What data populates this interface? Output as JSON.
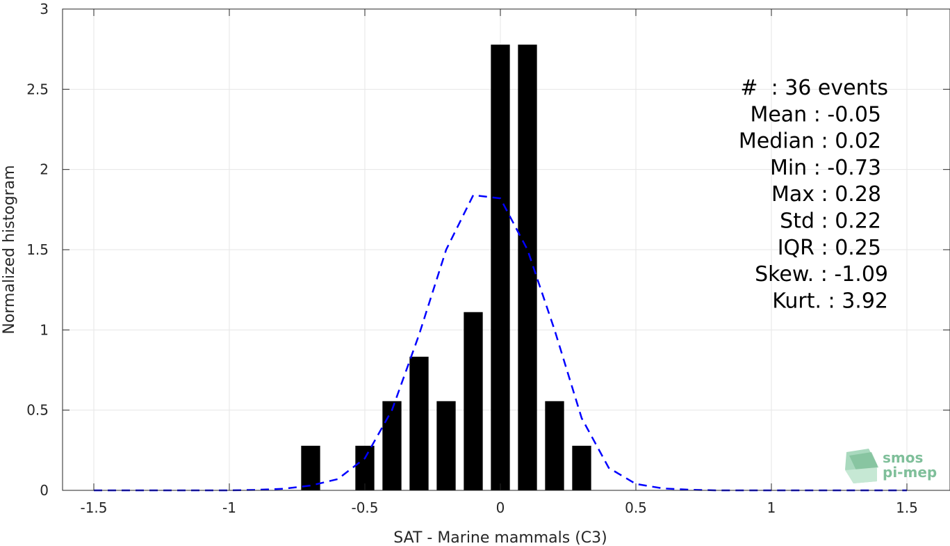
{
  "chart_data": {
    "type": "bar",
    "xlabel": "SAT - Marine mammals (C3)",
    "ylabel": "Normalized histogram",
    "xlim": [
      -1.5,
      1.5
    ],
    "ylim": [
      0,
      3
    ],
    "x_ticks": [
      -1.5,
      -1,
      -0.5,
      0,
      0.5,
      1,
      1.5
    ],
    "x_tick_labels": [
      "-1.5",
      "-1",
      "-0.5",
      "0",
      "0.5",
      "1",
      "1.5"
    ],
    "y_ticks": [
      0,
      0.5,
      1,
      1.5,
      2,
      2.5,
      3
    ],
    "y_tick_labels": [
      "0",
      "0.5",
      "1",
      "1.5",
      "2",
      "2.5",
      "3"
    ],
    "grid": true,
    "bar_color": "#000000",
    "bars": [
      {
        "x": -0.7,
        "value": 0.278
      },
      {
        "x": -0.5,
        "value": 0.278
      },
      {
        "x": -0.4,
        "value": 0.556
      },
      {
        "x": -0.3,
        "value": 0.833
      },
      {
        "x": -0.2,
        "value": 0.556
      },
      {
        "x": -0.1,
        "value": 1.111
      },
      {
        "x": 0.0,
        "value": 2.778
      },
      {
        "x": 0.1,
        "value": 2.778
      },
      {
        "x": 0.2,
        "value": 0.556
      },
      {
        "x": 0.3,
        "value": 0.278
      }
    ],
    "fit_curve": {
      "color": "#0000ff",
      "style": "dashed",
      "points": [
        [
          -1.5,
          0.0
        ],
        [
          -1.4,
          0.0
        ],
        [
          -1.3,
          0.0
        ],
        [
          -1.2,
          0.0
        ],
        [
          -1.1,
          0.0
        ],
        [
          -1.0,
          0.0
        ],
        [
          -0.9,
          0.003
        ],
        [
          -0.8,
          0.01
        ],
        [
          -0.7,
          0.03
        ],
        [
          -0.6,
          0.07
        ],
        [
          -0.5,
          0.2
        ],
        [
          -0.4,
          0.5
        ],
        [
          -0.3,
          0.97
        ],
        [
          -0.2,
          1.5
        ],
        [
          -0.1,
          1.84
        ],
        [
          0.0,
          1.82
        ],
        [
          0.1,
          1.5
        ],
        [
          0.2,
          1.0
        ],
        [
          0.3,
          0.45
        ],
        [
          0.4,
          0.14
        ],
        [
          0.5,
          0.04
        ],
        [
          0.6,
          0.012
        ],
        [
          0.7,
          0.004
        ],
        [
          0.8,
          0.0
        ],
        [
          0.9,
          0.0
        ],
        [
          1.0,
          0.0
        ],
        [
          1.1,
          0.0
        ],
        [
          1.2,
          0.0
        ],
        [
          1.3,
          0.0
        ],
        [
          1.4,
          0.0
        ],
        [
          1.5,
          0.0
        ]
      ]
    },
    "stats": [
      "#  : 36 events",
      "Mean : -0.05",
      "Median : 0.02",
      "Min : -0.73",
      "Max : 0.28",
      "Std : 0.22",
      "IQR : 0.25",
      "Skew. : -1.09",
      "Kurt. : 3.92"
    ]
  },
  "logo": {
    "line1": "smos",
    "line2": "pi-mep",
    "color": "#7fbf9a"
  }
}
